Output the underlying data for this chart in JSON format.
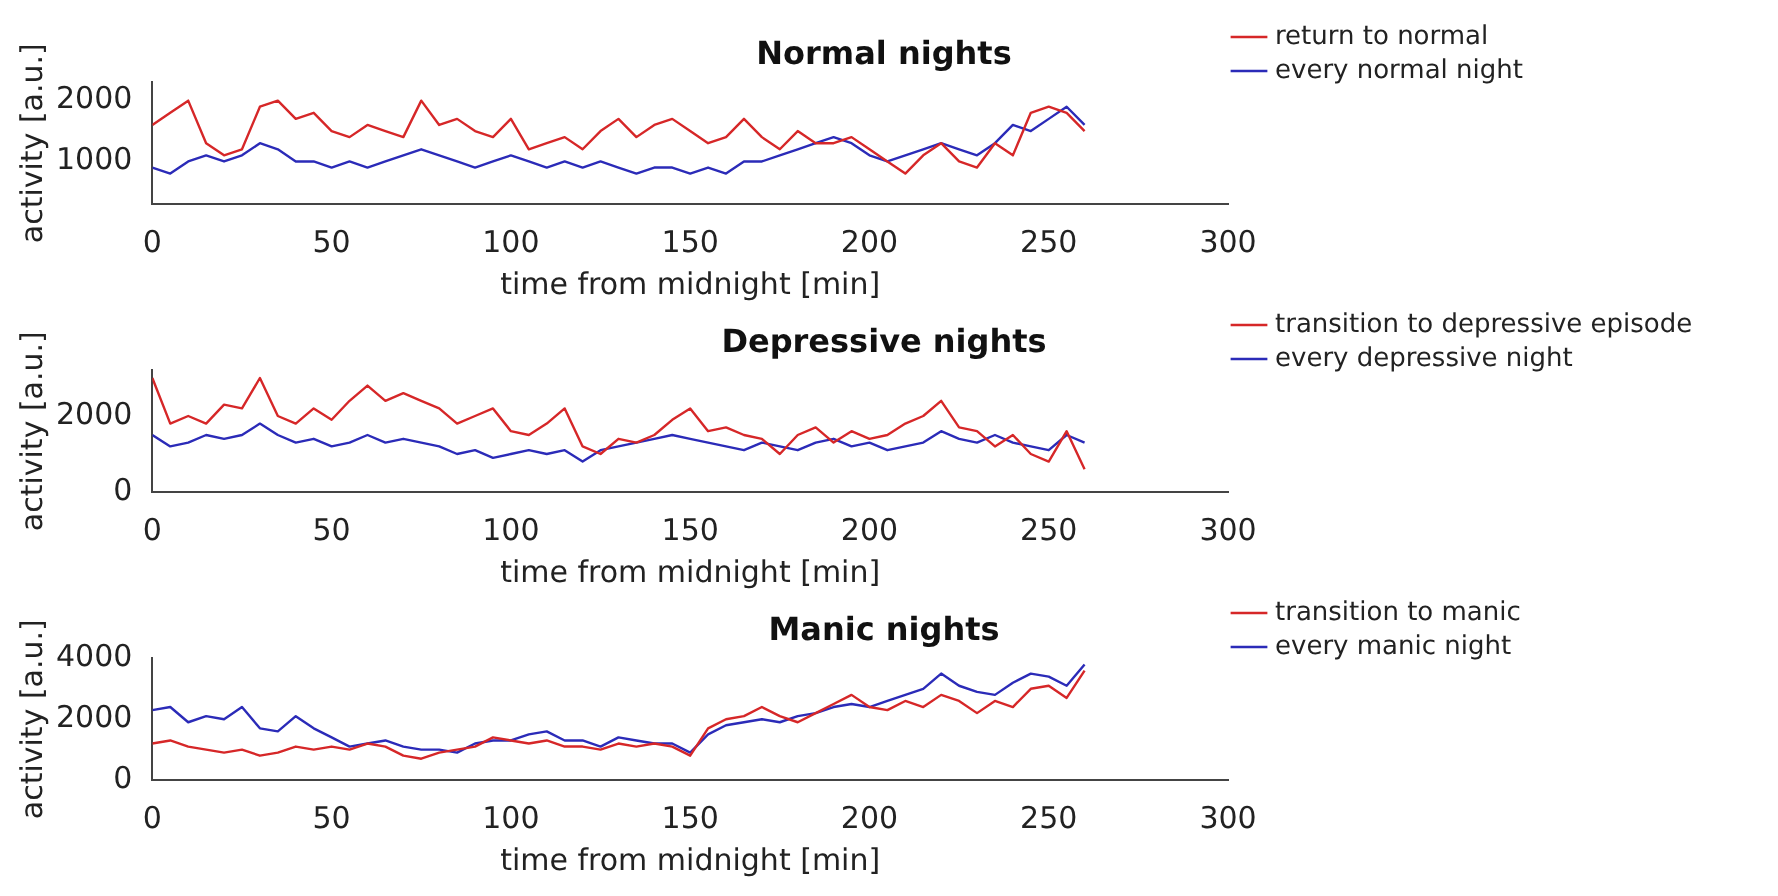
{
  "chart_data": [
    {
      "type": "line",
      "title": "Normal nights",
      "xlabel": "time from midnight [min]",
      "ylabel": "activity [a.u.]",
      "legend": "top right",
      "grid": false,
      "marker": "none",
      "xlim": [
        0,
        300
      ],
      "xticks": [
        0,
        50,
        100,
        150,
        200,
        250,
        300
      ],
      "ylim": [
        300,
        2300
      ],
      "yticks": [
        1000,
        2000
      ],
      "x": [
        0,
        5,
        10,
        15,
        20,
        25,
        30,
        35,
        40,
        45,
        50,
        55,
        60,
        65,
        70,
        75,
        80,
        85,
        90,
        95,
        100,
        105,
        110,
        115,
        120,
        125,
        130,
        135,
        140,
        145,
        150,
        155,
        160,
        165,
        170,
        175,
        180,
        185,
        190,
        195,
        200,
        205,
        210,
        215,
        220,
        225,
        230,
        235,
        240,
        245,
        250,
        255,
        260
      ],
      "series": [
        {
          "name": "return to normal",
          "color": "#d62728",
          "values": [
            1600,
            1800,
            2000,
            1300,
            1100,
            1200,
            1900,
            2000,
            1700,
            1800,
            1500,
            1400,
            1600,
            1500,
            1400,
            2000,
            1600,
            1700,
            1500,
            1400,
            1700,
            1200,
            1300,
            1400,
            1200,
            1500,
            1700,
            1400,
            1600,
            1700,
            1500,
            1300,
            1400,
            1700,
            1400,
            1200,
            1500,
            1300,
            1300,
            1400,
            1200,
            1000,
            800,
            1100,
            1300,
            1000,
            900,
            1300,
            1100,
            1800,
            1900,
            1800,
            1500
          ]
        },
        {
          "name": "every normal night",
          "color": "#2b2bb8",
          "values": [
            900,
            800,
            1000,
            1100,
            1000,
            1100,
            1300,
            1200,
            1000,
            1000,
            900,
            1000,
            900,
            1000,
            1100,
            1200,
            1100,
            1000,
            900,
            1000,
            1100,
            1000,
            900,
            1000,
            900,
            1000,
            900,
            800,
            900,
            900,
            800,
            900,
            800,
            1000,
            1000,
            1100,
            1200,
            1300,
            1400,
            1300,
            1100,
            1000,
            1100,
            1200,
            1300,
            1200,
            1100,
            1300,
            1600,
            1500,
            1700,
            1900,
            1600
          ]
        }
      ]
    },
    {
      "type": "line",
      "title": "Depressive nights",
      "xlabel": "time from midnight [min]",
      "ylabel": "activity [a.u.]",
      "legend": "top right",
      "grid": false,
      "marker": "none",
      "xlim": [
        0,
        300
      ],
      "xticks": [
        0,
        50,
        100,
        150,
        200,
        250,
        300
      ],
      "ylim": [
        0,
        3200
      ],
      "yticks": [
        0,
        2000
      ],
      "x": [
        0,
        5,
        10,
        15,
        20,
        25,
        30,
        35,
        40,
        45,
        50,
        55,
        60,
        65,
        70,
        75,
        80,
        85,
        90,
        95,
        100,
        105,
        110,
        115,
        120,
        125,
        130,
        135,
        140,
        145,
        150,
        155,
        160,
        165,
        170,
        175,
        180,
        185,
        190,
        195,
        200,
        205,
        210,
        215,
        220,
        225,
        230,
        235,
        240,
        245,
        250,
        255,
        260
      ],
      "series": [
        {
          "name": "transition to depressive episode",
          "color": "#d62728",
          "values": [
            3000,
            1800,
            2000,
            1800,
            2300,
            2200,
            3000,
            2000,
            1800,
            2200,
            1900,
            2400,
            2800,
            2400,
            2600,
            2400,
            2200,
            1800,
            2000,
            2200,
            1600,
            1500,
            1800,
            2200,
            1200,
            1000,
            1400,
            1300,
            1500,
            1900,
            2200,
            1600,
            1700,
            1500,
            1400,
            1000,
            1500,
            1700,
            1300,
            1600,
            1400,
            1500,
            1800,
            2000,
            2400,
            1700,
            1600,
            1200,
            1500,
            1000,
            800,
            1600,
            600
          ]
        },
        {
          "name": "every depressive night",
          "color": "#2b2bb8",
          "values": [
            1500,
            1200,
            1300,
            1500,
            1400,
            1500,
            1800,
            1500,
            1300,
            1400,
            1200,
            1300,
            1500,
            1300,
            1400,
            1300,
            1200,
            1000,
            1100,
            900,
            1000,
            1100,
            1000,
            1100,
            800,
            1100,
            1200,
            1300,
            1400,
            1500,
            1400,
            1300,
            1200,
            1100,
            1300,
            1200,
            1100,
            1300,
            1400,
            1200,
            1300,
            1100,
            1200,
            1300,
            1600,
            1400,
            1300,
            1500,
            1300,
            1200,
            1100,
            1500,
            1300
          ]
        }
      ]
    },
    {
      "type": "line",
      "title": "Manic nights",
      "xlabel": "time from midnight [min]",
      "ylabel": "activity [a.u.]",
      "legend": "top right",
      "grid": false,
      "marker": "none",
      "xlim": [
        0,
        300
      ],
      "xticks": [
        0,
        50,
        100,
        150,
        200,
        250,
        300
      ],
      "ylim": [
        0,
        4000
      ],
      "yticks": [
        0,
        2000,
        4000
      ],
      "x": [
        0,
        5,
        10,
        15,
        20,
        25,
        30,
        35,
        40,
        45,
        50,
        55,
        60,
        65,
        70,
        75,
        80,
        85,
        90,
        95,
        100,
        105,
        110,
        115,
        120,
        125,
        130,
        135,
        140,
        145,
        150,
        155,
        160,
        165,
        170,
        175,
        180,
        185,
        190,
        195,
        200,
        205,
        210,
        215,
        220,
        225,
        230,
        235,
        240,
        245,
        250,
        255,
        260
      ],
      "series": [
        {
          "name": "transition to manic",
          "color": "#d62728",
          "values": [
            1200,
            1300,
            1100,
            1000,
            900,
            1000,
            800,
            900,
            1100,
            1000,
            1100,
            1000,
            1200,
            1100,
            800,
            700,
            900,
            1000,
            1100,
            1400,
            1300,
            1200,
            1300,
            1100,
            1100,
            1000,
            1200,
            1100,
            1200,
            1100,
            800,
            1700,
            2000,
            2100,
            2400,
            2100,
            1900,
            2200,
            2500,
            2800,
            2400,
            2300,
            2600,
            2400,
            2800,
            2600,
            2200,
            2600,
            2400,
            3000,
            3100,
            2700,
            3600
          ]
        },
        {
          "name": "every manic night",
          "color": "#2b2bb8",
          "values": [
            2300,
            2400,
            1900,
            2100,
            2000,
            2400,
            1700,
            1600,
            2100,
            1700,
            1400,
            1100,
            1200,
            1300,
            1100,
            1000,
            1000,
            900,
            1200,
            1300,
            1300,
            1500,
            1600,
            1300,
            1300,
            1100,
            1400,
            1300,
            1200,
            1200,
            900,
            1500,
            1800,
            1900,
            2000,
            1900,
            2100,
            2200,
            2400,
            2500,
            2400,
            2600,
            2800,
            3000,
            3500,
            3100,
            2900,
            2800,
            3200,
            3500,
            3400,
            3100,
            3800
          ]
        }
      ]
    }
  ]
}
